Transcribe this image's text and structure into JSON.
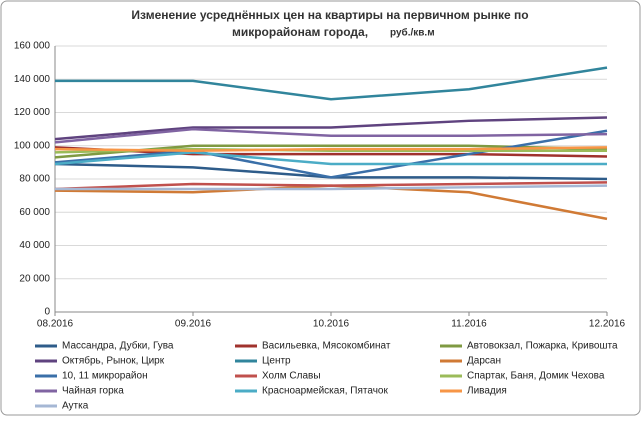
{
  "chart_data": {
    "type": "line",
    "title": [
      "Изменение усреднённых цен на квартиры на первичном рынке по",
      "микрорайонам города,"
    ],
    "unit": "руб./кв.м",
    "categories": [
      "08.2016",
      "09.2016",
      "10.2016",
      "11.2016",
      "12.2016"
    ],
    "ylim": [
      0,
      160000
    ],
    "yticks": [
      {
        "value": 0,
        "label": "0"
      },
      {
        "value": 20000,
        "label": "20 000"
      },
      {
        "value": 40000,
        "label": "40 000"
      },
      {
        "value": 60000,
        "label": "60 000"
      },
      {
        "value": 80000,
        "label": "80 000"
      },
      {
        "value": 100000,
        "label": "100 000"
      },
      {
        "value": 120000,
        "label": "120 000"
      },
      {
        "value": 140000,
        "label": "140 000"
      },
      {
        "value": 160000,
        "label": "160 000"
      }
    ],
    "grid": true,
    "series": [
      {
        "name": "Массандра, Дубки, Гува",
        "color": "#2e5c8a",
        "values": [
          89000,
          87000,
          81000,
          81000,
          80000
        ]
      },
      {
        "name": "Васильевка, Мясокомбинат",
        "color": "#a0322d",
        "values": [
          99000,
          95000,
          95000,
          95000,
          93500
        ]
      },
      {
        "name": "Автовокзал, Пожарка, Кривошта",
        "color": "#7f9a42",
        "values": [
          93000,
          100000,
          100000,
          100000,
          98000
        ]
      },
      {
        "name": "Октябрь, Рынок, Цирк",
        "color": "#5f437f",
        "values": [
          104000,
          111000,
          111000,
          115000,
          117000
        ]
      },
      {
        "name": "Центр",
        "color": "#31859c",
        "values": [
          139000,
          139000,
          128000,
          134000,
          147000
        ]
      },
      {
        "name": "Дарсан",
        "color": "#d07a35",
        "values": [
          73000,
          72000,
          76000,
          72000,
          56000
        ]
      },
      {
        "name": "10, 11 микрорайон",
        "color": "#3a6fa8",
        "values": [
          90000,
          97000,
          81000,
          95000,
          109000
        ]
      },
      {
        "name": "Холм Славы",
        "color": "#c0504d",
        "values": [
          74000,
          77000,
          76000,
          77000,
          78000
        ]
      },
      {
        "name": "Спартак, Баня, Домик Чехова",
        "color": "#9bbb59",
        "values": [
          96000,
          98000,
          97000,
          97000,
          97000
        ]
      },
      {
        "name": "Чайная горка",
        "color": "#8064a2",
        "values": [
          102000,
          110000,
          106000,
          106000,
          107000
        ]
      },
      {
        "name": "Красноармейская, Пятачок",
        "color": "#4bacc6",
        "values": [
          89000,
          96000,
          89000,
          89000,
          89000
        ]
      },
      {
        "name": "Ливадия",
        "color": "#f79646",
        "values": [
          98000,
          97000,
          98000,
          98000,
          99000
        ]
      },
      {
        "name": "Аутка",
        "color": "#a5b7d4",
        "values": [
          74000,
          74000,
          74000,
          75000,
          76000
        ]
      }
    ]
  }
}
